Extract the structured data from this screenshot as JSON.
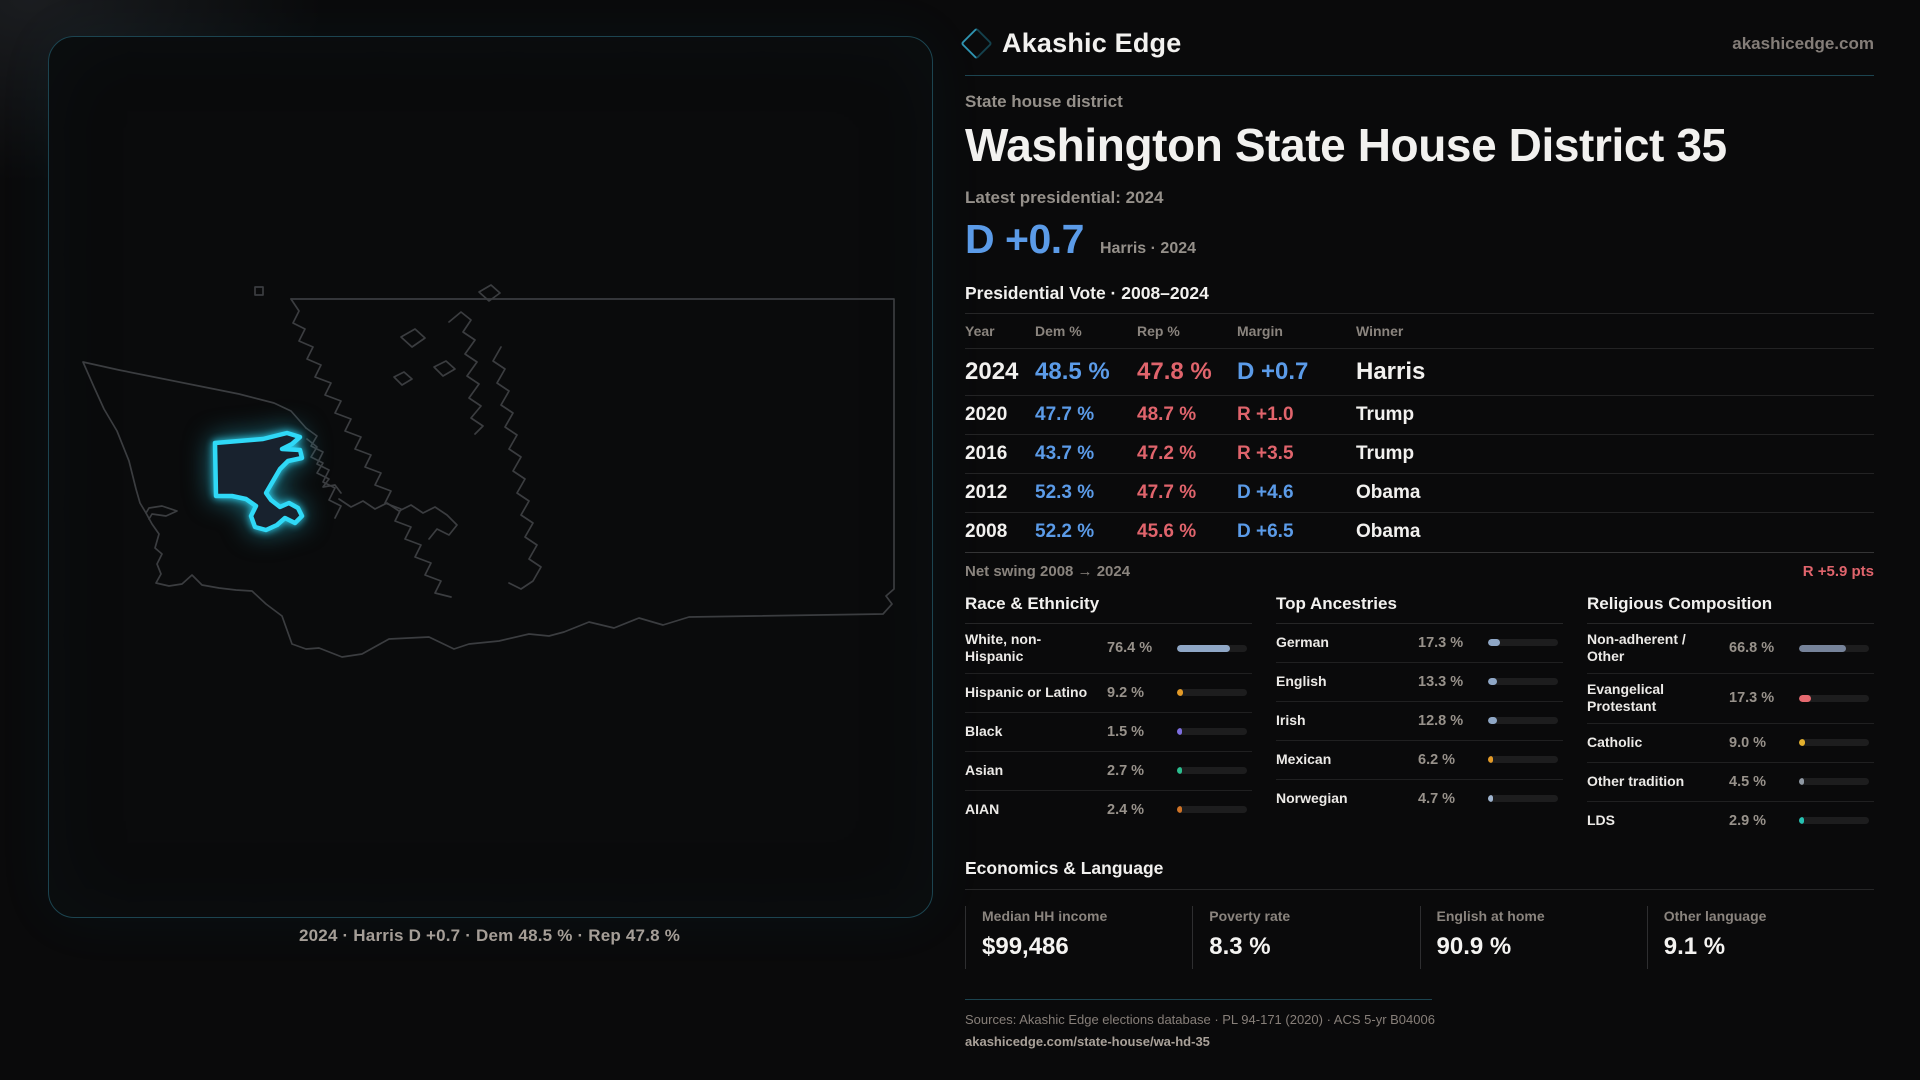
{
  "brand": {
    "name": "Akashic Edge",
    "site": "akashicedge.com",
    "accent": "#2fd9f7"
  },
  "page": {
    "kicker": "State house district",
    "title": "Washington State House District 35",
    "latest_label": "Latest presidential: 2024",
    "headline_margin": "D +0.7",
    "headline_sub": "Harris · 2024"
  },
  "map": {
    "caption": "2024 · Harris D +0.7 · Dem 48.5 % · Rep 47.8 %",
    "state_stroke": "#3b3d40",
    "district_fill": "#18222e",
    "district_stroke": "#2fd9f7"
  },
  "table": {
    "title": "Presidential Vote · 2008–2024",
    "headers": [
      "Year",
      "Dem %",
      "Rep %",
      "Margin",
      "Winner"
    ],
    "rows": [
      {
        "year": "2024",
        "dem": "48.5 %",
        "rep": "47.8 %",
        "margin": "D +0.7",
        "winner": "Harris",
        "margin_color": "#5b9be8"
      },
      {
        "year": "2020",
        "dem": "47.7 %",
        "rep": "48.7 %",
        "margin": "R +1.0",
        "winner": "Trump",
        "margin_color": "#e0646c"
      },
      {
        "year": "2016",
        "dem": "43.7 %",
        "rep": "47.2 %",
        "margin": "R +3.5",
        "winner": "Trump",
        "margin_color": "#e0646c"
      },
      {
        "year": "2012",
        "dem": "52.3 %",
        "rep": "47.7 %",
        "margin": "D +4.6",
        "winner": "Obama",
        "margin_color": "#5b9be8"
      },
      {
        "year": "2008",
        "dem": "52.2 %",
        "rep": "45.6 %",
        "margin": "D +6.5",
        "winner": "Obama",
        "margin_color": "#5b9be8"
      }
    ],
    "net_swing_label": "Net swing 2008 → 2024",
    "net_swing_value": "R +5.9 pts"
  },
  "demographics": {
    "race": {
      "title": "Race & Ethnicity",
      "rows": [
        {
          "label": "White, non-Hispanic",
          "value": "76.4 %",
          "pct": 76.4,
          "color": "#8fa7c6"
        },
        {
          "label": "Hispanic or Latino",
          "value": "9.2 %",
          "pct": 9.2,
          "color": "#e39a27"
        },
        {
          "label": "Black",
          "value": "1.5 %",
          "pct": 1.5,
          "color": "#7d6ee0"
        },
        {
          "label": "Asian",
          "value": "2.7 %",
          "pct": 2.7,
          "color": "#2bbd8e"
        },
        {
          "label": "AIAN",
          "value": "2.4 %",
          "pct": 2.4,
          "color": "#cf7326"
        }
      ]
    },
    "ancestry": {
      "title": "Top Ancestries",
      "rows": [
        {
          "label": "German",
          "value": "17.3 %",
          "pct": 17.3,
          "color": "#8fa7c6"
        },
        {
          "label": "English",
          "value": "13.3 %",
          "pct": 13.3,
          "color": "#8fa7c6"
        },
        {
          "label": "Irish",
          "value": "12.8 %",
          "pct": 12.8,
          "color": "#8fa7c6"
        },
        {
          "label": "Mexican",
          "value": "6.2 %",
          "pct": 6.2,
          "color": "#e39a27"
        },
        {
          "label": "Norwegian",
          "value": "4.7 %",
          "pct": 4.7,
          "color": "#9fb4cf"
        }
      ]
    },
    "religion": {
      "title": "Religious Composition",
      "rows": [
        {
          "label": "Non-adherent / Other",
          "value": "66.8 %",
          "pct": 66.8,
          "color": "#76839a"
        },
        {
          "label": "Evangelical Protestant",
          "value": "17.3 %",
          "pct": 17.3,
          "color": "#e5696f"
        },
        {
          "label": "Catholic",
          "value": "9.0 %",
          "pct": 9.0,
          "color": "#e3b02e"
        },
        {
          "label": "Other tradition",
          "value": "4.5 %",
          "pct": 4.5,
          "color": "#8f98a3"
        },
        {
          "label": "LDS",
          "value": "2.9 %",
          "pct": 2.9,
          "color": "#26c2b2"
        }
      ]
    }
  },
  "economics": {
    "title": "Economics & Language",
    "stats": [
      {
        "label": "Median HH income",
        "value": "$99,486"
      },
      {
        "label": "Poverty rate",
        "value": "8.3 %"
      },
      {
        "label": "English at home",
        "value": "90.9 %"
      },
      {
        "label": "Other language",
        "value": "9.1 %"
      }
    ]
  },
  "footer": {
    "sources": "Sources: Akashic Edge elections database · PL 94-171 (2020) · ACS 5-yr B04006",
    "permalink": "akashicedge.com/state-house/wa-hd-35"
  },
  "chart_data": [
    {
      "type": "table",
      "title": "Presidential Vote · 2008–2024",
      "columns": [
        "Year",
        "Dem %",
        "Rep %",
        "Margin",
        "Winner"
      ],
      "rows": [
        [
          "2024",
          48.5,
          47.8,
          "D +0.7",
          "Harris"
        ],
        [
          "2020",
          47.7,
          48.7,
          "R +1.0",
          "Trump"
        ],
        [
          "2016",
          43.7,
          47.2,
          "R +3.5",
          "Trump"
        ],
        [
          "2012",
          52.3,
          47.7,
          "D +4.6",
          "Obama"
        ],
        [
          "2008",
          52.2,
          45.6,
          "D +6.5",
          "Obama"
        ]
      ],
      "note": "Net swing 2008 → 2024: R +5.9 pts"
    },
    {
      "type": "bar",
      "title": "Race & Ethnicity",
      "categories": [
        "White, non-Hispanic",
        "Hispanic or Latino",
        "Black",
        "Asian",
        "AIAN"
      ],
      "values": [
        76.4,
        9.2,
        1.5,
        2.7,
        2.4
      ],
      "unit": "%",
      "xlim": [
        0,
        100
      ],
      "orientation": "horizontal",
      "grid": false,
      "legend": false
    },
    {
      "type": "bar",
      "title": "Top Ancestries",
      "categories": [
        "German",
        "English",
        "Irish",
        "Mexican",
        "Norwegian"
      ],
      "values": [
        17.3,
        13.3,
        12.8,
        6.2,
        4.7
      ],
      "unit": "%",
      "xlim": [
        0,
        100
      ],
      "orientation": "horizontal",
      "grid": false,
      "legend": false
    },
    {
      "type": "bar",
      "title": "Religious Composition",
      "categories": [
        "Non-adherent / Other",
        "Evangelical Protestant",
        "Catholic",
        "Other tradition",
        "LDS"
      ],
      "values": [
        66.8,
        17.3,
        9.0,
        4.5,
        2.9
      ],
      "unit": "%",
      "xlim": [
        0,
        100
      ],
      "orientation": "horizontal",
      "grid": false,
      "legend": false
    },
    {
      "type": "table",
      "title": "Economics & Language",
      "columns": [
        "Median HH income",
        "Poverty rate",
        "English at home",
        "Other language"
      ],
      "rows": [
        [
          "$99,486",
          "8.3 %",
          "90.9 %",
          "9.1 %"
        ]
      ]
    }
  ]
}
